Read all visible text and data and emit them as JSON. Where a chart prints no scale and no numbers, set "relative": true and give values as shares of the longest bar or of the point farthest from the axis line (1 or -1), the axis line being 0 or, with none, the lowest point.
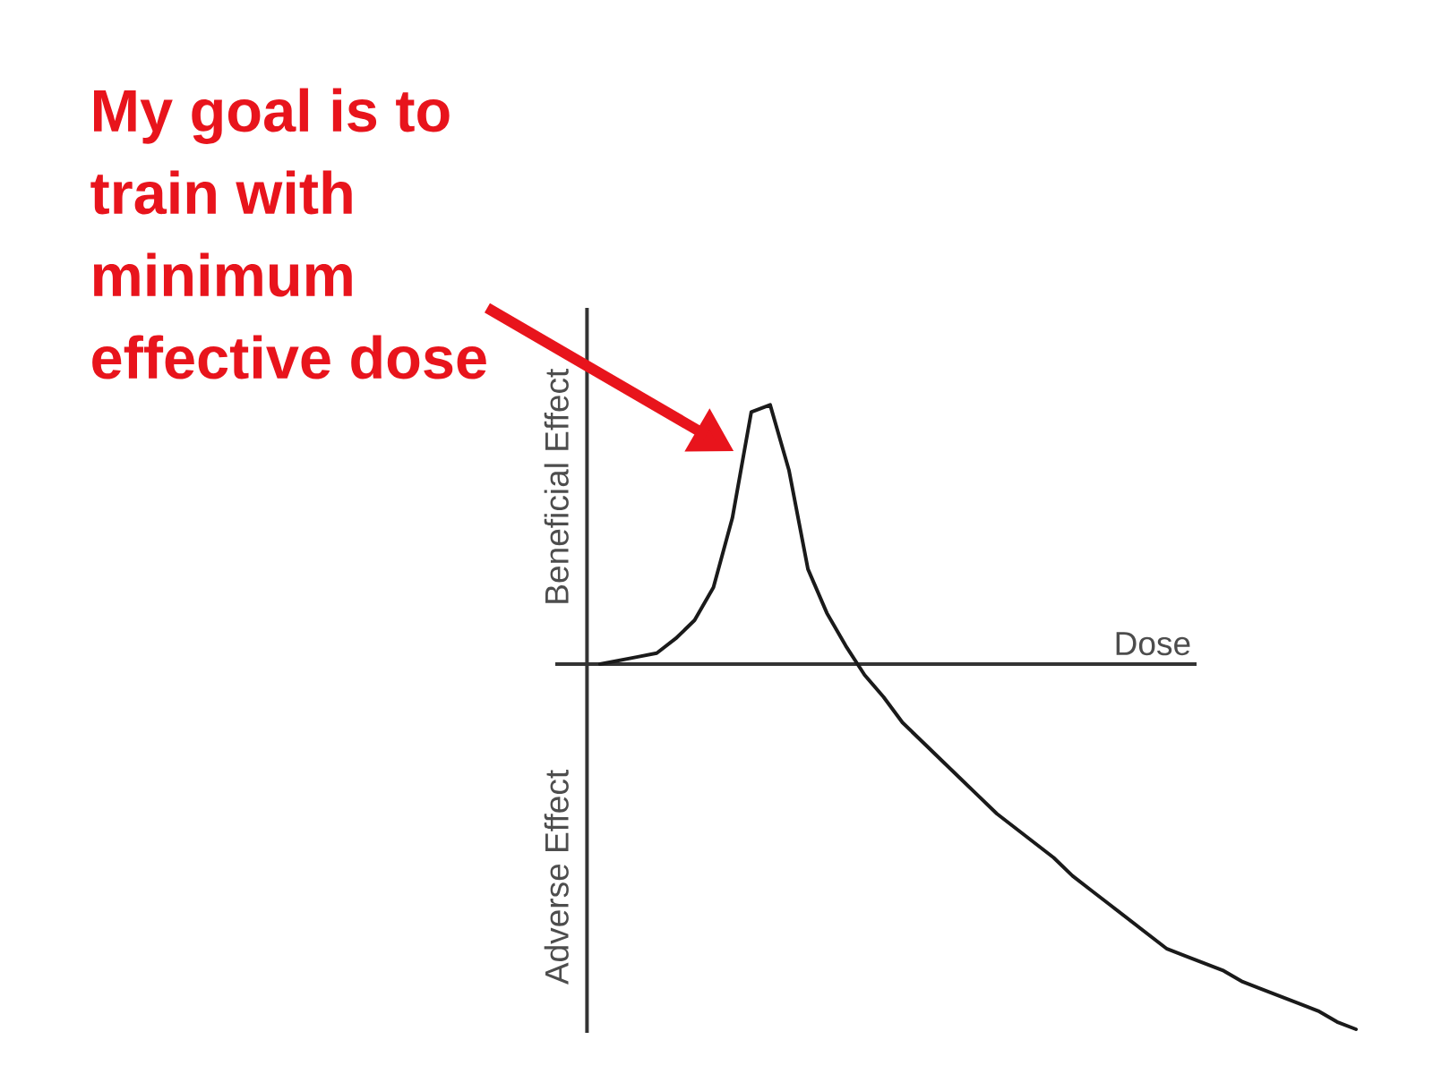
{
  "chart_data": {
    "type": "line",
    "xlabel": "Dose",
    "ylabel": "Beneficial Effect",
    "annotations": [
      "My goal is to train with minimum effective dose",
      "Adverse Effect"
    ],
    "categories": [
      null,
      null,
      null,
      null,
      null,
      null,
      null,
      null,
      null,
      null,
      null,
      null,
      null,
      null,
      null,
      null,
      null,
      null,
      null,
      null,
      null,
      null,
      null,
      null,
      null,
      null,
      null,
      null,
      null,
      null,
      null,
      null,
      null,
      null,
      null,
      null,
      null,
      null,
      null,
      null,
      null
    ],
    "values": [
      0.0,
      0.01,
      0.02,
      0.03,
      0.07,
      0.12,
      0.21,
      0.4,
      0.69,
      0.71,
      0.53,
      0.26,
      0.14,
      0.05,
      -0.03,
      -0.09,
      -0.16,
      -0.21,
      -0.26,
      -0.31,
      -0.36,
      -0.41,
      -0.45,
      -0.49,
      -0.53,
      -0.58,
      -0.62,
      -0.66,
      -0.7,
      -0.74,
      -0.78,
      -0.8,
      -0.82,
      -0.84,
      -0.87,
      -0.89,
      -0.91,
      -0.93,
      -0.95,
      -0.98,
      -1
    ],
    "color": "#1a1a1a",
    "relative": true,
    "marker": "none",
    "line_style": "solid"
  }
}
